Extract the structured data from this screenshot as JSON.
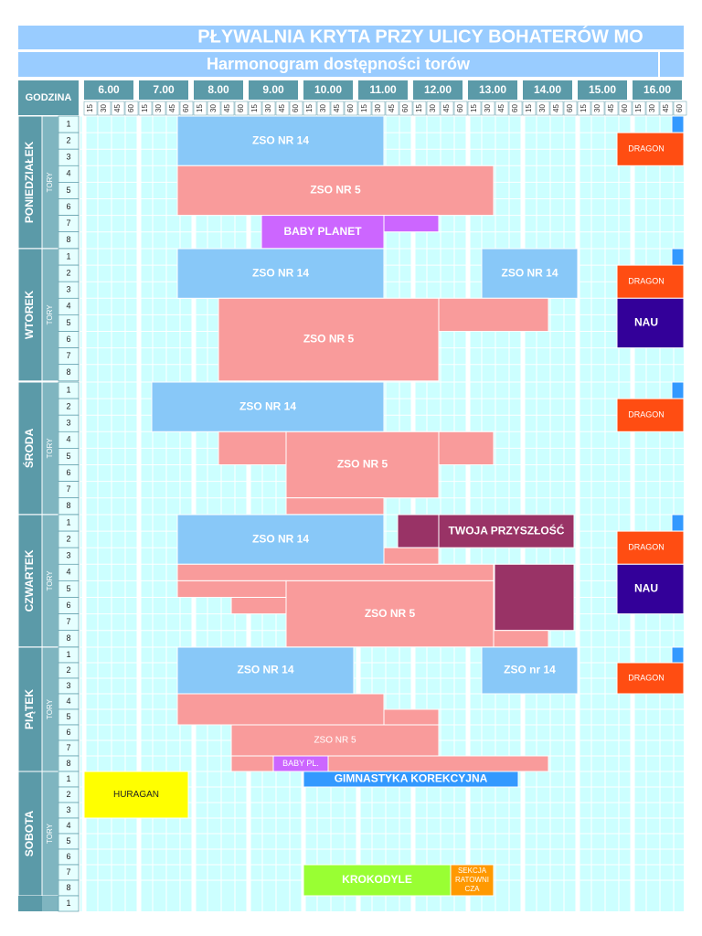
{
  "header": {
    "title": "PŁYWALNIA KRYTA PRZY ULICY BOHATERÓW MO",
    "subtitle": "Harmonogram dostępności torów",
    "hour_label": "GODZINA",
    "lanes_label": "TORY"
  },
  "hours": [
    "6.00",
    "7.00",
    "8.00",
    "9.00",
    "10.00",
    "11.00",
    "12.00",
    "13.00",
    "14.00",
    "15.00",
    "16.00"
  ],
  "quarters": [
    "15",
    "30",
    "45",
    "60"
  ],
  "lanes": [
    "1",
    "2",
    "3",
    "4",
    "5",
    "6",
    "7",
    "8"
  ],
  "days": [
    {
      "name": "PONIEDZIAŁEK",
      "blocks": [
        {
          "label": "ZSO NR 14"
        },
        {
          "label": "ZSO NR 5"
        },
        {
          "label": "BABY PLANET"
        },
        {
          "label": "DRAGON"
        }
      ]
    },
    {
      "name": "WTOREK",
      "blocks": [
        {
          "label": "ZSO NR 14"
        },
        {
          "label": "ZSO NR 14"
        },
        {
          "label": "ZSO NR 5"
        },
        {
          "label": "DRAGON"
        },
        {
          "label": "NAU"
        }
      ]
    },
    {
      "name": "ŚRODA",
      "blocks": [
        {
          "label": "ZSO NR 14"
        },
        {
          "label": "ZSO NR 5"
        },
        {
          "label": "DRAGON"
        }
      ]
    },
    {
      "name": "CZWARTEK",
      "blocks": [
        {
          "label": "ZSO NR 14"
        },
        {
          "label": "TWOJA PRZYSZŁOŚĆ"
        },
        {
          "label": "ZSO NR 5"
        },
        {
          "label": "DRAGON"
        },
        {
          "label": "NAU"
        }
      ]
    },
    {
      "name": "PIĄTEK",
      "blocks": [
        {
          "label": "ZSO NR 14"
        },
        {
          "label": "ZSO nr 14"
        },
        {
          "label": "ZSO NR 5"
        },
        {
          "label": "BABY PL."
        },
        {
          "label": "DRAGON"
        }
      ]
    },
    {
      "name": "SOBOTA",
      "blocks": [
        {
          "label": "HURAGAN"
        },
        {
          "label": "GIMNASTYKA KOREKCYJNA"
        },
        {
          "label": "KROKODYLE"
        },
        {
          "label": [
            "SEKCJA",
            "RATOWNI",
            "CZA"
          ]
        }
      ]
    }
  ]
}
